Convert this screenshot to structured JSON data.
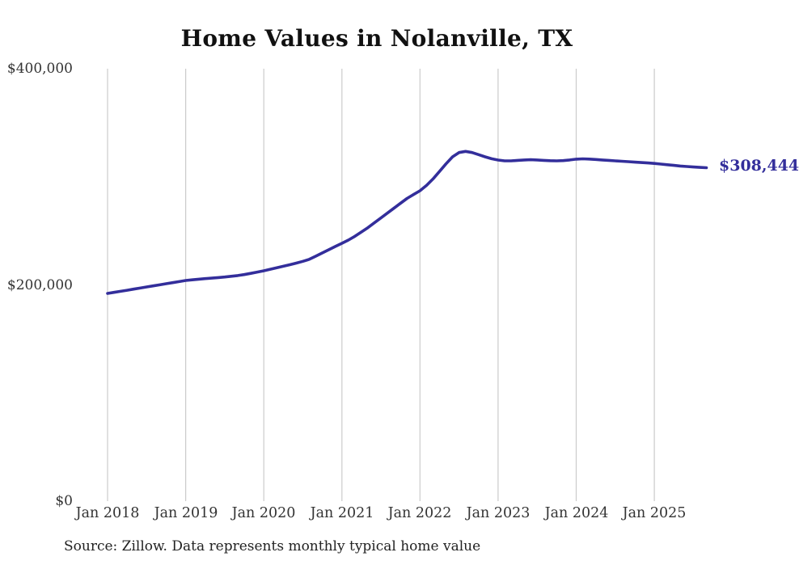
{
  "chart": {
    "title": "Home Values in Nolanville, TX",
    "end_label": "$308,444",
    "source": "Source: Zillow. Data represents monthly typical home value"
  },
  "colors": {
    "line": "#332e9b",
    "grid": "#cbcbcb",
    "tick_text": "#333333",
    "title_text": "#111111"
  },
  "chart_data": {
    "type": "line",
    "title": "Home Values in Nolanville, TX",
    "xlabel": "",
    "ylabel": "",
    "interval": "monthly",
    "x_start": "2018-01",
    "x_end": "2025-09",
    "x_tick_labels": [
      "Jan 2018",
      "Jan 2019",
      "Jan 2020",
      "Jan 2021",
      "Jan 2022",
      "Jan 2023",
      "Jan 2024",
      "Jan 2025"
    ],
    "x_tick_month_indices": [
      0,
      12,
      24,
      36,
      48,
      60,
      72,
      84
    ],
    "y_ticks": [
      {
        "label": "$0",
        "value": 0
      },
      {
        "label": "$200,000",
        "value": 200000
      },
      {
        "label": "$400,000",
        "value": 400000
      }
    ],
    "ylim": [
      0,
      400000
    ],
    "grid": "vertical-only",
    "legend": "none",
    "end_value": 308444,
    "end_value_label": "$308,444",
    "source": "Source: Zillow. Data represents monthly typical home value",
    "values": [
      192150,
      193100,
      194100,
      195100,
      196100,
      197100,
      198100,
      199100,
      200100,
      201100,
      202100,
      203100,
      204100,
      204700,
      205300,
      205800,
      206300,
      206800,
      207300,
      208000,
      208700,
      209600,
      210700,
      211900,
      213100,
      214500,
      215900,
      217300,
      218700,
      220200,
      221800,
      223700,
      226600,
      229600,
      232600,
      235600,
      238500,
      241500,
      245000,
      249000,
      253000,
      257500,
      262000,
      266500,
      271000,
      275500,
      280000,
      283600,
      287100,
      292000,
      298000,
      305000,
      312000,
      318500,
      322500,
      323500,
      322500,
      320500,
      318500,
      316700,
      315500,
      314800,
      314800,
      315200,
      315600,
      315800,
      315600,
      315200,
      314900,
      314800,
      315000,
      315600,
      316300,
      316600,
      316400,
      316000,
      315600,
      315200,
      314800,
      314400,
      314000,
      313600,
      313200,
      312800,
      312400,
      311800,
      311200,
      310600,
      310000,
      309500,
      309100,
      308700,
      308444
    ]
  }
}
